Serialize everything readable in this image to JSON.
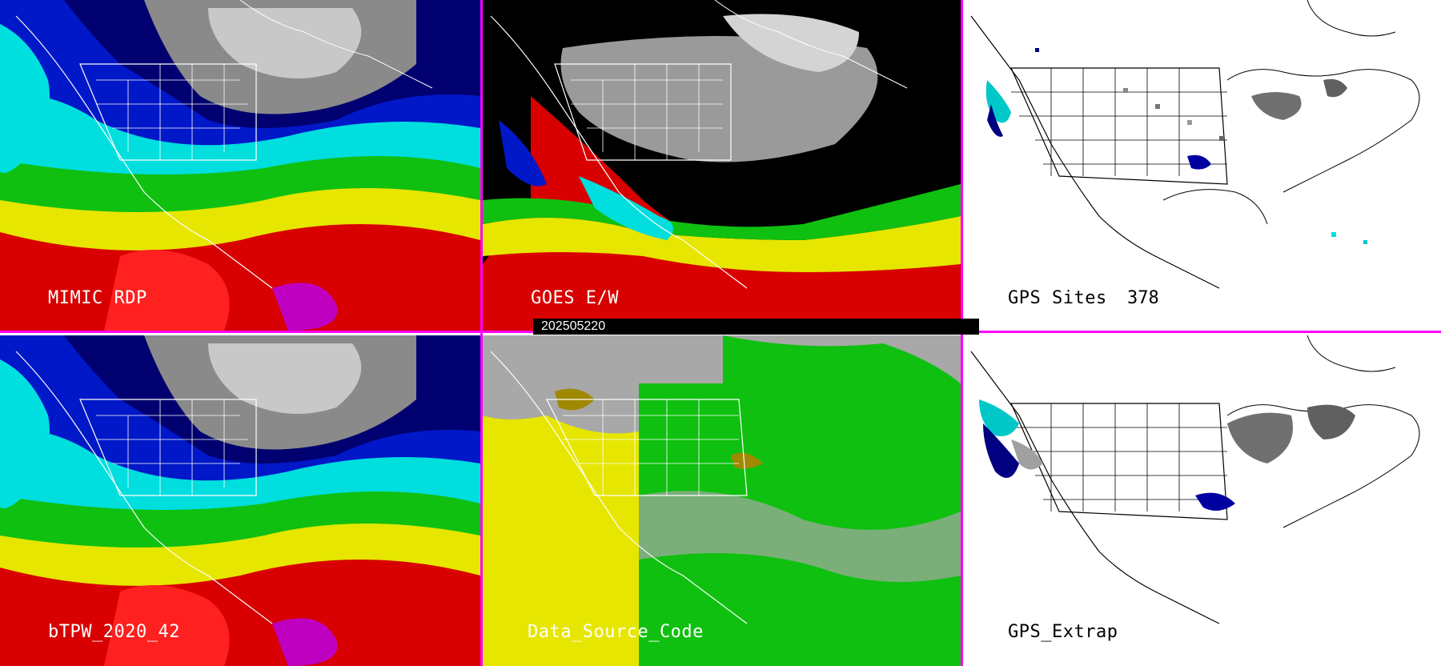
{
  "panels": {
    "mimic": {
      "label": "MIMIC RDP"
    },
    "goes": {
      "label": "GOES E/W"
    },
    "gps_sites": {
      "label": "GPS Sites",
      "count": "378"
    },
    "btpw": {
      "label": "bTPW_2020_42"
    },
    "data_source": {
      "label": "Data_Source_Code"
    },
    "gps_extrap": {
      "label": "GPS_Extrap"
    }
  },
  "timestamp": "202505220",
  "colors": {
    "divider": "#ff00ff",
    "moist_red": "#d40000",
    "yellow": "#e6e600",
    "green": "#00c800",
    "cyan": "#00e0e0",
    "blue": "#0000c0",
    "navy": "#000060",
    "gray": "#a0a0a0"
  }
}
